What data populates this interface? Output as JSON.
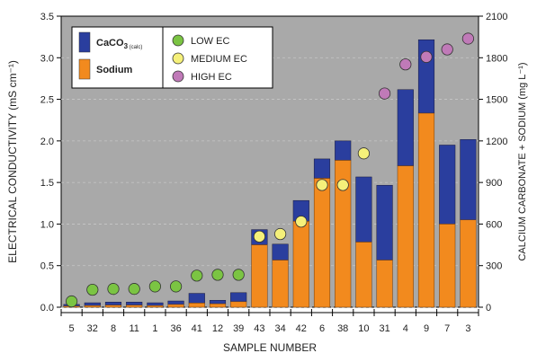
{
  "chart_data": {
    "type": "bar",
    "stacked": true,
    "xlabel": "SAMPLE NUMBER",
    "ylabel_left": "ELECTRICAL CONDUCTIVITY (mS cm⁻¹)",
    "ylabel_right": "CALCIUM CARBONATE + SODIUM (mg L⁻¹)",
    "ylim_left": [
      0,
      3.5
    ],
    "ylim_right": [
      0,
      2100
    ],
    "yticks_left": [
      "0.0",
      "0.5",
      "1.0",
      "1.5",
      "2.0",
      "2.5",
      "3.0",
      "3.5"
    ],
    "yticks_right": [
      "0",
      "300",
      "600",
      "900",
      "1200",
      "1500",
      "1800",
      "2100"
    ],
    "categories": [
      "5",
      "32",
      "8",
      "11",
      "1",
      "36",
      "41",
      "12",
      "39",
      "43",
      "34",
      "42",
      "6",
      "38",
      "10",
      "31",
      "4",
      "9",
      "7",
      "3"
    ],
    "series": [
      {
        "name": "Sodium",
        "axis": "right",
        "color": "#f28a1e",
        "values": [
          8,
          12,
          15,
          15,
          12,
          20,
          30,
          25,
          40,
          450,
          340,
          620,
          930,
          1060,
          470,
          340,
          1020,
          1400,
          600,
          630
        ]
      },
      {
        "name": "CaCO3 (calc)",
        "axis": "right",
        "color": "#2a3e9e",
        "values": [
          12,
          20,
          22,
          22,
          20,
          25,
          70,
          25,
          65,
          110,
          115,
          150,
          140,
          140,
          470,
          540,
          550,
          530,
          570,
          580
        ]
      }
    ],
    "ec_points": {
      "axis": "left",
      "values": [
        0.07,
        0.21,
        0.22,
        0.22,
        0.25,
        0.25,
        0.38,
        0.39,
        0.39,
        0.85,
        0.88,
        1.03,
        1.47,
        1.47,
        1.85,
        2.57,
        2.92,
        3.01,
        3.1,
        3.23
      ],
      "classes": [
        "low",
        "low",
        "low",
        "low",
        "low",
        "low",
        "low",
        "low",
        "low",
        "medium",
        "medium",
        "medium",
        "medium",
        "medium",
        "medium",
        "high",
        "high",
        "high",
        "high",
        "high"
      ]
    },
    "ec_colors": {
      "low": "#7bc443",
      "medium": "#f5f07a",
      "high": "#c07ab8"
    },
    "plot_background": "#a9a9a9",
    "grid": "horizontal-dashed",
    "legend": {
      "placement": "top-left",
      "bar_items": [
        {
          "key": "caco3",
          "label": "CaCO",
          "sub": "3",
          "small": " (calc)",
          "color": "#2a3e9e"
        },
        {
          "key": "sodium",
          "label": "Sodium",
          "sub": "",
          "small": "",
          "color": "#f28a1e"
        }
      ],
      "point_items": [
        {
          "key": "low",
          "label": "LOW EC",
          "color": "#7bc443"
        },
        {
          "key": "medium",
          "label": "MEDIUM EC",
          "color": "#f5f07a"
        },
        {
          "key": "high",
          "label": "HIGH EC",
          "color": "#c07ab8"
        }
      ]
    }
  }
}
